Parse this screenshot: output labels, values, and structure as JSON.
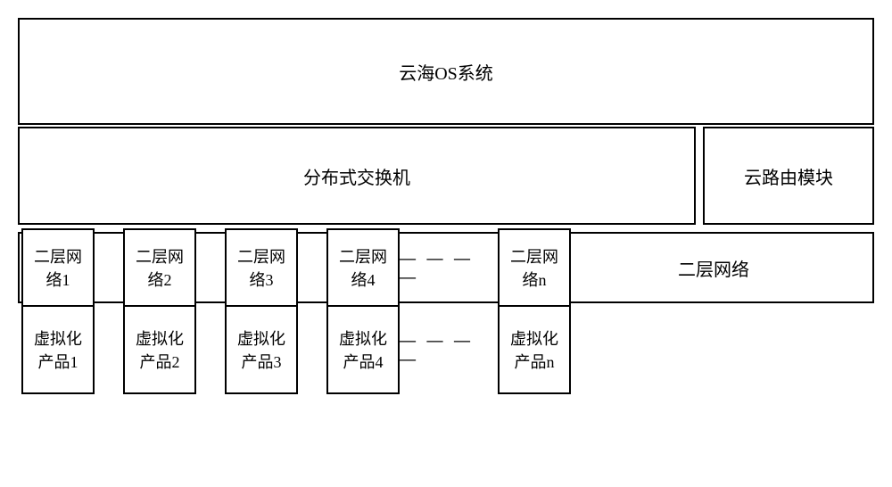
{
  "diagram": {
    "colors": {
      "border": "#000000",
      "background": "#ffffff",
      "text": "#000000"
    },
    "typography": {
      "font_family": "SimSun",
      "title_fontsize": 20,
      "box_fontsize": 18
    },
    "row1": {
      "title": "云海OS系统"
    },
    "row2": {
      "distributed_switch": "分布式交换机",
      "cloud_router": "云路由模块"
    },
    "row3": {
      "items": [
        "二层网\n络1",
        "二层网\n络2",
        "二层网\n络3",
        "二层网\n络4",
        "二层网\n络n"
      ],
      "right_label": "二层网络",
      "dash_text": "— — — —"
    },
    "row4": {
      "items": [
        "虚拟化\n产品1",
        "虚拟化\n产品2",
        "虚拟化\n产品3",
        "虚拟化\n产品4",
        "虚拟化\n产品n"
      ],
      "dash_text": "— — — —"
    }
  }
}
